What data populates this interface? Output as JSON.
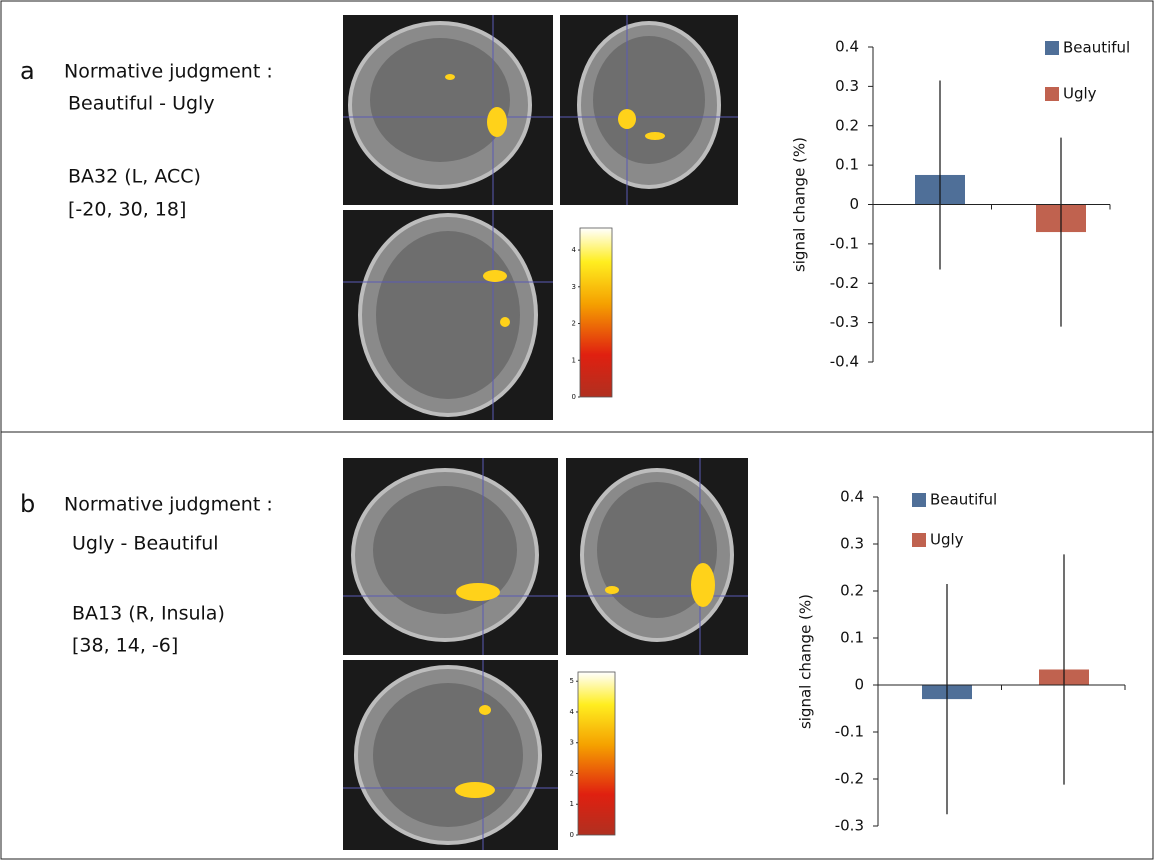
{
  "panels": [
    {
      "label": "a",
      "heading": "Normative judgment :",
      "contrast": "Beautiful - Ugly",
      "region": "BA32 (L, ACC)",
      "coords": "[-20, 30, 18]",
      "colorbar": {
        "clim": [
          0,
          4.6
        ],
        "ticks": [
          0,
          1,
          2,
          3,
          4
        ]
      }
    },
    {
      "label": "b",
      "heading": "Normative judgment :",
      "contrast": "Ugly - Beautiful",
      "region": "BA13 (R, Insula)",
      "coords": "[38, 14, -6]",
      "colorbar": {
        "clim": [
          0,
          5.3
        ],
        "ticks": [
          0,
          1,
          2,
          3,
          4,
          5
        ]
      }
    }
  ],
  "chart_data": [
    {
      "type": "bar",
      "y_label": "signal change (%)",
      "categories": [
        null
      ],
      "series": [
        {
          "name": "Beautiful",
          "color": "#4f6f98",
          "values": [
            0.075
          ],
          "errors": [
            0.24
          ]
        },
        {
          "name": "Ugly",
          "color": "#c0624f",
          "values": [
            -0.07
          ],
          "errors": [
            0.24
          ]
        }
      ],
      "ylim": [
        -0.4,
        0.4
      ],
      "yticks": [
        -0.4,
        -0.3,
        -0.2,
        -0.1,
        0,
        0.1,
        0.2,
        0.3,
        0.4
      ]
    },
    {
      "type": "bar",
      "y_label": "signal change (%)",
      "categories": [
        null
      ],
      "series": [
        {
          "name": "Beautiful",
          "color": "#4f6f98",
          "values": [
            -0.03
          ],
          "errors": [
            0.245
          ]
        },
        {
          "name": "Ugly",
          "color": "#c0624f",
          "values": [
            0.033
          ],
          "errors": [
            0.245
          ]
        }
      ],
      "ylim": [
        -0.3,
        0.4
      ],
      "yticks": [
        -0.3,
        -0.2,
        -0.1,
        0,
        0.1,
        0.2,
        0.3,
        0.4
      ]
    }
  ]
}
